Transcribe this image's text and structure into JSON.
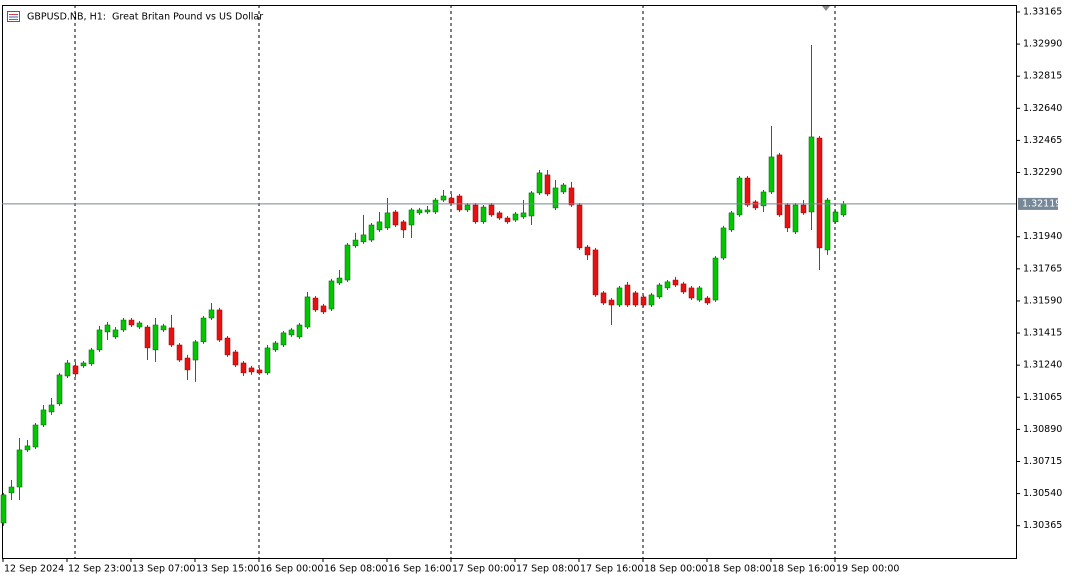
{
  "chart_data": {
    "type": "candlestick",
    "title": "GBPUSD.NB, H1:  Great Britan Pound vs US Dollar",
    "up_color": "#00c800",
    "down_color": "#e81010",
    "categories": [
      "12 Sep 2024",
      null,
      null,
      null,
      null,
      null,
      null,
      null,
      "12 Sep 23:00",
      null,
      null,
      null,
      null,
      null,
      null,
      null,
      "13 Sep 07:00",
      null,
      null,
      null,
      null,
      null,
      null,
      null,
      "13 Sep 15:00",
      null,
      null,
      null,
      null,
      null,
      null,
      null,
      "16 Sep 00:00",
      null,
      null,
      null,
      null,
      null,
      null,
      null,
      "16 Sep 08:00",
      null,
      null,
      null,
      null,
      null,
      null,
      null,
      "16 Sep 16:00",
      null,
      null,
      null,
      null,
      null,
      null,
      null,
      "17 Sep 00:00",
      null,
      null,
      null,
      null,
      null,
      null,
      null,
      "17 Sep 08:00",
      null,
      null,
      null,
      null,
      null,
      null,
      null,
      "17 Sep 16:00",
      null,
      null,
      null,
      null,
      null,
      null,
      null,
      "18 Sep 00:00",
      null,
      null,
      null,
      null,
      null,
      null,
      null,
      "18 Sep 08:00",
      null,
      null,
      null,
      null,
      null,
      null,
      null,
      "18 Sep 16:00",
      null,
      null,
      null,
      null,
      null,
      null,
      null,
      "19 Sep 00:00",
      null
    ],
    "open": [
      1.3038,
      1.30544,
      1.30576,
      1.30778,
      1.30794,
      1.30914,
      1.30985,
      1.31029,
      1.31181,
      1.31236,
      1.31236,
      1.31247,
      1.31323,
      1.31421,
      1.31394,
      1.31432,
      1.31486,
      1.31448,
      1.31448,
      1.31323,
      1.31432,
      1.31443,
      1.3135,
      1.31279,
      1.31268,
      1.31367,
      1.31497,
      1.31541,
      1.31388,
      1.31312,
      1.31252,
      1.31225,
      1.31214,
      1.31198,
      1.31323,
      1.3135,
      1.31405,
      1.31394,
      1.31448,
      1.31606,
      1.31563,
      1.31546,
      1.31688,
      1.31704,
      1.3189,
      1.31912,
      1.31922,
      1.31977,
      1.31988,
      1.32075,
      1.32021,
      1.32004,
      1.3207,
      1.32075,
      1.32075,
      1.3214,
      1.32151,
      1.32162,
      1.32086,
      1.32113,
      1.32021,
      1.32113,
      1.3207,
      1.32042,
      1.32031,
      1.32048,
      1.32053,
      1.32179,
      1.32277,
      1.32097,
      1.32184,
      1.32206,
      1.32113,
      1.31884,
      1.31868,
      1.31634,
      1.31595,
      1.31568,
      1.31677,
      1.31634,
      1.31612,
      1.31568,
      1.31612,
      1.31661,
      1.31704,
      1.31683,
      1.31661,
      1.31595,
      1.31606,
      1.31595,
      1.31824,
      1.31977,
      1.32059,
      1.3226,
      1.3213,
      1.32108,
      1.32184,
      1.32386,
      1.32113,
      1.31966,
      1.32113,
      1.32075,
      1.32478,
      1.31868,
      1.32021,
      1.32059
    ],
    "high": [
      1.30544,
      1.30614,
      1.30843,
      1.30832,
      1.30925,
      1.31023,
      1.31061,
      1.31198,
      1.31268,
      1.31258,
      1.31263,
      1.31334,
      1.31454,
      1.31476,
      1.31448,
      1.31497,
      1.31497,
      1.31481,
      1.31459,
      1.31497,
      1.31465,
      1.31514,
      1.31361,
      1.31296,
      1.31377,
      1.31508,
      1.31579,
      1.31552,
      1.31399,
      1.31323,
      1.31263,
      1.31236,
      1.31225,
      1.3135,
      1.31372,
      1.31426,
      1.31443,
      1.3147,
      1.31639,
      1.31617,
      1.31574,
      1.3171,
      1.31759,
      1.31906,
      1.31961,
      1.32059,
      1.32015,
      1.32075,
      1.32151,
      1.32086,
      1.32031,
      1.32097,
      1.32097,
      1.32108,
      1.32151,
      1.32195,
      1.32173,
      1.32173,
      1.32124,
      1.32124,
      1.32113,
      1.32124,
      1.3208,
      1.32053,
      1.32075,
      1.3214,
      1.32189,
      1.32304,
      1.32304,
      1.32249,
      1.32233,
      1.32239,
      1.32124,
      1.31895,
      1.31879,
      1.31644,
      1.31606,
      1.31672,
      1.31694,
      1.31644,
      1.31623,
      1.31634,
      1.31688,
      1.31704,
      1.31721,
      1.31694,
      1.31672,
      1.31672,
      1.31617,
      1.31835,
      1.31999,
      1.3208,
      1.32271,
      1.32271,
      1.3214,
      1.32195,
      1.32544,
      1.32397,
      1.32124,
      1.32124,
      1.3214,
      1.32985,
      1.32489,
      1.32151,
      1.32086,
      1.32135
    ],
    "low": [
      1.30364,
      1.30505,
      1.30505,
      1.30767,
      1.30783,
      1.30903,
      1.30969,
      1.31018,
      1.3117,
      1.31176,
      1.31225,
      1.31236,
      1.31312,
      1.31377,
      1.31383,
      1.31421,
      1.31448,
      1.31437,
      1.31268,
      1.31258,
      1.31421,
      1.31339,
      1.31258,
      1.31159,
      1.31149,
      1.31356,
      1.31486,
      1.31367,
      1.31285,
      1.3123,
      1.31181,
      1.31187,
      1.31187,
      1.31187,
      1.31312,
      1.31339,
      1.31394,
      1.31383,
      1.31437,
      1.3153,
      1.31519,
      1.31535,
      1.31677,
      1.31694,
      1.31879,
      1.31901,
      1.31912,
      1.31966,
      1.31977,
      1.31993,
      1.31933,
      1.31933,
      1.32059,
      1.32064,
      1.32064,
      1.3213,
      1.32113,
      1.32075,
      1.32075,
      1.3201,
      1.3201,
      1.32048,
      1.32031,
      1.3201,
      1.32021,
      1.32037,
      1.32004,
      1.32168,
      1.32162,
      1.32086,
      1.32173,
      1.32102,
      1.31868,
      1.31813,
      1.31612,
      1.31568,
      1.31459,
      1.31557,
      1.31557,
      1.31557,
      1.31557,
      1.31557,
      1.31601,
      1.3165,
      1.31666,
      1.31628,
      1.31595,
      1.31585,
      1.31568,
      1.31585,
      1.31813,
      1.31966,
      1.32048,
      1.32102,
      1.32086,
      1.32075,
      1.32173,
      1.32048,
      1.31966,
      1.31955,
      1.32059,
      1.31977,
      1.31759,
      1.31841,
      1.3201,
      1.32048
    ],
    "close": [
      1.30533,
      1.30576,
      1.30778,
      1.308,
      1.30914,
      1.30996,
      1.31023,
      1.31187,
      1.31252,
      1.31192,
      1.31252,
      1.31323,
      1.31432,
      1.31459,
      1.31432,
      1.31486,
      1.31459,
      1.3147,
      1.31334,
      1.31459,
      1.31454,
      1.3135,
      1.31268,
      1.31214,
      1.31367,
      1.31497,
      1.31541,
      1.31377,
      1.31296,
      1.31241,
      1.31198,
      1.31203,
      1.31198,
      1.31334,
      1.31361,
      1.31416,
      1.31432,
      1.31459,
      1.31612,
      1.31541,
      1.3153,
      1.31699,
      1.31715,
      1.31895,
      1.31922,
      1.3195,
      1.32004,
      1.32021,
      1.3207,
      1.32004,
      1.31977,
      1.32086,
      1.32086,
      1.32086,
      1.3214,
      1.32162,
      1.32124,
      1.32086,
      1.32113,
      1.32021,
      1.32102,
      1.32059,
      1.32042,
      1.32021,
      1.32064,
      1.3207,
      1.32179,
      1.32288,
      1.32173,
      1.32206,
      1.32222,
      1.32113,
      1.31879,
      1.31841,
      1.31623,
      1.31579,
      1.31568,
      1.31661,
      1.31568,
      1.31568,
      1.31568,
      1.31623,
      1.31677,
      1.31694,
      1.31677,
      1.31639,
      1.31606,
      1.31661,
      1.31579,
      1.31824,
      1.31988,
      1.3207,
      1.3226,
      1.32113,
      1.32097,
      1.32184,
      1.32375,
      1.32059,
      1.31988,
      1.32113,
      1.3207,
      1.32484,
      1.31879,
      1.3214,
      1.32075,
      1.32119
    ],
    "ylim": [
      1.30189,
      1.33203
    ],
    "yticks": [
      1.33165,
      {
        "value": 1.3299,
        "label": "1.32990"
      },
      1.32815,
      {
        "value": 1.3264,
        "label": "1.32640"
      },
      1.32465,
      {
        "value": 1.3229,
        "label": "1.32290"
      },
      {
        "value": 1.3194,
        "label": "1.31940"
      },
      1.31765,
      {
        "value": 1.3159,
        "label": "1.31590"
      },
      1.31415,
      {
        "value": 1.3124,
        "label": "1.31240"
      },
      1.31065,
      {
        "value": 1.3089,
        "label": "1.30890"
      },
      1.30715,
      {
        "value": 1.3054,
        "label": "1.30540"
      },
      1.30365
    ]
  }
}
